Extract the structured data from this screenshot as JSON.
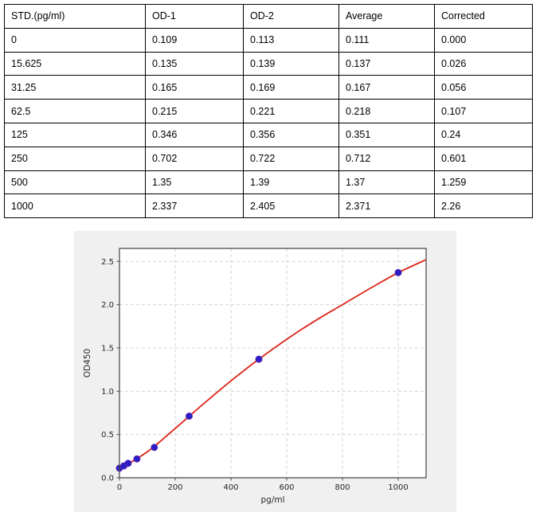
{
  "table": {
    "columns": [
      "STD.(pg/ml)",
      "OD-1",
      "OD-2",
      "Average",
      "Corrected"
    ],
    "rows": [
      [
        "0",
        "0.109",
        "0.113",
        "0.111",
        "0.000"
      ],
      [
        "15.625",
        "0.135",
        "0.139",
        "0.137",
        "0.026"
      ],
      [
        "31.25",
        "0.165",
        "0.169",
        "0.167",
        "0.056"
      ],
      [
        "62.5",
        "0.215",
        "0.221",
        "0.218",
        "0.107"
      ],
      [
        "125",
        "0.346",
        "0.356",
        "0.351",
        "0.24"
      ],
      [
        "250",
        "0.702",
        "0.722",
        "0.712",
        "0.601"
      ],
      [
        "500",
        "1.35",
        "1.39",
        "1.37",
        "1.259"
      ],
      [
        "1000",
        "2.337",
        "2.405",
        "2.371",
        "2.26"
      ]
    ]
  },
  "chart_data": {
    "type": "scatter",
    "title": "",
    "xlabel": "pg/ml",
    "ylabel": "OD450",
    "xlim": [
      0,
      1100
    ],
    "ylim": [
      0,
      2.65
    ],
    "xticks": [
      "0",
      "200",
      "400",
      "600",
      "800",
      "1000"
    ],
    "yticks": [
      "0.0",
      "0.5",
      "1.0",
      "1.5",
      "2.0",
      "2.5"
    ],
    "grid": true,
    "legend": "none",
    "points": {
      "x": [
        0,
        15.625,
        31.25,
        62.5,
        125,
        250,
        500,
        1000
      ],
      "y": [
        0.111,
        0.137,
        0.167,
        0.218,
        0.351,
        0.712,
        1.37,
        2.371
      ]
    },
    "fit_curve": {
      "x": [
        0,
        100,
        200,
        300,
        400,
        500,
        600,
        700,
        800,
        900,
        1000,
        1100
      ],
      "y": [
        0.1,
        0.3,
        0.57,
        0.85,
        1.12,
        1.37,
        1.6,
        1.81,
        2.0,
        2.19,
        2.37,
        2.52
      ]
    },
    "colors": {
      "curve": "#dd2419",
      "marker": "#2a1fc7",
      "marker_edge": "#5d1cae",
      "grid": "#cfcfcf",
      "frame": "#4d4d4d",
      "tick_text": "#262626",
      "figure_bg": "#f0f0f0",
      "plot_bg": "#ffffff"
    }
  }
}
